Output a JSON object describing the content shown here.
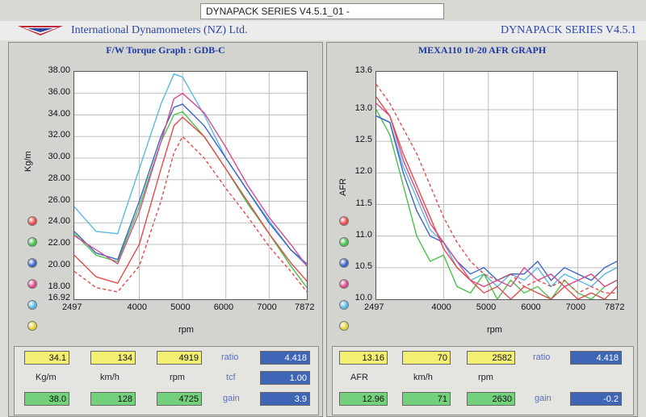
{
  "window": {
    "title": "DYNAPACK SERIES V4.5.1_01  -"
  },
  "header": {
    "company": "International Dynamometers (NZ) Ltd.",
    "series": "DYNAPACK SERIES V4.5.1"
  },
  "left": {
    "title": "F/W Torque Graph : GDB-C",
    "y_axis_title": "Kg/m",
    "x_axis_title": "rpm",
    "yticks": [
      "38.00",
      "36.00",
      "34.00",
      "32.00",
      "30.00",
      "28.00",
      "26.00",
      "24.00",
      "22.00",
      "20.00",
      "18.00",
      "16.92"
    ],
    "xticks": [
      "2497",
      "4000",
      "5000",
      "6000",
      "7000",
      "7872"
    ],
    "run_dot_colors": [
      "#e64a4a",
      "#4ac24a",
      "#3a64c8",
      "#d94a8c",
      "#5ab8e6",
      "#e6d43a"
    ],
    "stats": {
      "row1": [
        "34.1",
        "134",
        "4919"
      ],
      "units": [
        "Kg/m",
        "km/h",
        "rpm"
      ],
      "row3": [
        "38.0",
        "128",
        "4725"
      ],
      "side_labels": [
        "ratio",
        "tcf",
        "gain"
      ],
      "side_values": [
        "4.418",
        "1.00",
        "3.9"
      ]
    }
  },
  "right": {
    "title": "MEXA110 10-20 AFR GRAPH",
    "y_axis_title": "AFR",
    "x_axis_title": "rpm",
    "yticks": [
      "13.6",
      "13.0",
      "12.5",
      "12.0",
      "11.5",
      "11.0",
      "10.5",
      "10.0"
    ],
    "xticks": [
      "2497",
      "4000",
      "5000",
      "6000",
      "7000",
      "7872"
    ],
    "run_dot_colors": [
      "#e64a4a",
      "#4ac24a",
      "#3a64c8",
      "#d94a8c",
      "#5ab8e6",
      "#e6d43a"
    ],
    "stats": {
      "row1": [
        "13.16",
        "70",
        "2582"
      ],
      "units": [
        "AFR",
        "km/h",
        "rpm"
      ],
      "row3": [
        "12.96",
        "71",
        "2630"
      ],
      "side_labels": [
        "ratio",
        "gain"
      ],
      "side_values": [
        "4.418",
        "-0.2"
      ]
    }
  },
  "chart_data": [
    {
      "type": "line",
      "title": "F/W Torque Graph : GDB-C",
      "xlabel": "rpm",
      "ylabel": "Kg/m",
      "xlim": [
        2497,
        7872
      ],
      "ylim": [
        16.92,
        38.0
      ],
      "series": [
        {
          "color": "#5ab8e6",
          "x": [
            2497,
            3000,
            3500,
            4000,
            4500,
            4800,
            5000,
            5500,
            6000,
            6500,
            7000,
            7500,
            7872
          ],
          "y": [
            25.5,
            23.2,
            23.0,
            29.0,
            35.0,
            37.8,
            37.5,
            34.0,
            30.0,
            27.0,
            24.2,
            21.5,
            20.0
          ]
        },
        {
          "color": "#4ac24a",
          "x": [
            2497,
            3000,
            3500,
            4000,
            4500,
            4800,
            5000,
            5500,
            6000,
            6500,
            7000,
            7500,
            7872
          ],
          "y": [
            23.0,
            21.0,
            20.4,
            25.5,
            31.5,
            34.0,
            34.3,
            32.0,
            29.0,
            25.8,
            23.0,
            20.0,
            18.0
          ]
        },
        {
          "color": "#3a64c8",
          "x": [
            2497,
            3000,
            3500,
            4000,
            4500,
            4800,
            5000,
            5500,
            6000,
            6500,
            7000,
            7500,
            7872
          ],
          "y": [
            23.2,
            21.2,
            20.6,
            26.0,
            32.0,
            34.7,
            35.0,
            33.0,
            30.0,
            27.0,
            24.0,
            21.5,
            20.2
          ]
        },
        {
          "color": "#d94a8c",
          "x": [
            2497,
            3000,
            3500,
            4000,
            4500,
            4800,
            5000,
            5500,
            6000,
            6500,
            7000,
            7500,
            7872
          ],
          "y": [
            22.8,
            21.5,
            20.2,
            25.0,
            31.5,
            35.5,
            36.0,
            34.2,
            31.0,
            27.5,
            24.5,
            22.0,
            20.0
          ]
        },
        {
          "color": "#e64a4a",
          "x": [
            2497,
            3000,
            3500,
            4000,
            4500,
            4800,
            5000,
            5500,
            6000,
            6500,
            7000,
            7500,
            7872
          ],
          "y": [
            21.0,
            19.0,
            18.4,
            22.0,
            29.0,
            33.0,
            33.8,
            32.0,
            29.0,
            26.0,
            23.0,
            20.3,
            18.6
          ]
        },
        {
          "color": "#e64a4a",
          "dashed": true,
          "x": [
            2497,
            3000,
            3500,
            4000,
            4500,
            4800,
            5000,
            5500,
            6000,
            6500,
            7000,
            7500,
            7872
          ],
          "y": [
            19.5,
            18.0,
            17.6,
            20.0,
            26.0,
            30.5,
            32.0,
            30.0,
            27.2,
            24.6,
            21.8,
            19.5,
            17.6
          ]
        }
      ]
    },
    {
      "type": "line",
      "title": "MEXA110 10-20 AFR GRAPH",
      "xlabel": "rpm",
      "ylabel": "AFR",
      "xlim": [
        2497,
        7872
      ],
      "ylim": [
        10.0,
        13.6
      ],
      "series": [
        {
          "color": "#5ab8e6",
          "x": [
            2497,
            2800,
            3100,
            3400,
            3700,
            4000,
            4300,
            4600,
            4900,
            5200,
            5500,
            5800,
            6100,
            6400,
            6700,
            7000,
            7300,
            7600,
            7872
          ],
          "y": [
            12.9,
            12.8,
            12.1,
            11.6,
            11.1,
            10.9,
            10.5,
            10.3,
            10.4,
            10.2,
            10.4,
            10.3,
            10.5,
            10.2,
            10.4,
            10.3,
            10.2,
            10.4,
            10.5
          ]
        },
        {
          "color": "#4ac24a",
          "x": [
            2497,
            2800,
            3100,
            3400,
            3700,
            4000,
            4300,
            4600,
            4900,
            5200,
            5500,
            5800,
            6100,
            6400,
            6700,
            7000,
            7300,
            7600,
            7872
          ],
          "y": [
            13.0,
            12.6,
            11.8,
            11.0,
            10.6,
            10.7,
            10.2,
            10.1,
            10.4,
            10.0,
            10.3,
            10.1,
            10.2,
            10.0,
            10.3,
            10.1,
            10.0,
            10.2,
            10.3
          ]
        },
        {
          "color": "#3a64c8",
          "x": [
            2497,
            2800,
            3100,
            3400,
            3700,
            4000,
            4300,
            4600,
            4900,
            5200,
            5500,
            5800,
            6100,
            6400,
            6700,
            7000,
            7300,
            7600,
            7872
          ],
          "y": [
            12.9,
            12.8,
            12.0,
            11.4,
            11.0,
            10.9,
            10.6,
            10.4,
            10.5,
            10.3,
            10.4,
            10.4,
            10.6,
            10.3,
            10.5,
            10.4,
            10.3,
            10.5,
            10.6
          ]
        },
        {
          "color": "#d94a8c",
          "x": [
            2497,
            2800,
            3100,
            3400,
            3700,
            4000,
            4300,
            4600,
            4900,
            5200,
            5500,
            5800,
            6100,
            6400,
            6700,
            7000,
            7300,
            7600,
            7872
          ],
          "y": [
            13.1,
            12.9,
            12.2,
            11.7,
            11.2,
            10.9,
            10.6,
            10.3,
            10.2,
            10.3,
            10.2,
            10.5,
            10.3,
            10.4,
            10.2,
            10.3,
            10.4,
            10.2,
            10.3
          ]
        },
        {
          "color": "#e64a4a",
          "x": [
            2497,
            2800,
            3100,
            3400,
            3700,
            4000,
            4300,
            4600,
            4900,
            5200,
            5500,
            5800,
            6100,
            6400,
            6700,
            7000,
            7300,
            7600,
            7872
          ],
          "y": [
            13.2,
            12.9,
            12.3,
            11.8,
            11.3,
            10.8,
            10.5,
            10.3,
            10.1,
            10.2,
            10.0,
            10.2,
            10.1,
            10.0,
            10.2,
            10.0,
            10.1,
            10.0,
            10.2
          ]
        },
        {
          "color": "#e64a4a",
          "dashed": true,
          "x": [
            2497,
            2800,
            3100,
            3400,
            3700,
            4000,
            4300,
            4600,
            4900,
            5200,
            5500,
            5800,
            6100,
            6400,
            6700,
            7000,
            7300,
            7600,
            7872
          ],
          "y": [
            13.4,
            13.1,
            12.7,
            12.3,
            11.8,
            11.3,
            10.9,
            10.6,
            10.4,
            10.3,
            10.4,
            10.2,
            10.3,
            10.2,
            10.3,
            10.1,
            10.2,
            10.1,
            10.1
          ]
        }
      ]
    }
  ]
}
